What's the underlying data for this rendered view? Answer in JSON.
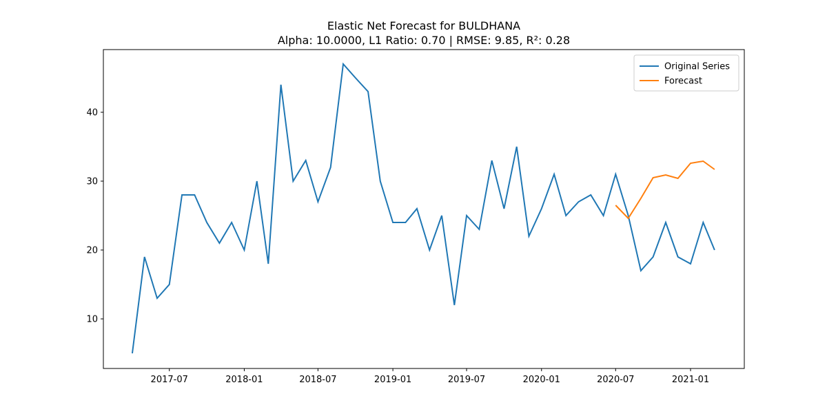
{
  "chart_data": {
    "type": "line",
    "title": "Elastic Net Forecast for BULDHANA",
    "subtitle": "Alpha: 10.0000, L1 Ratio: 0.70 | RMSE: 9.85, R²: 0.28",
    "series": [
      {
        "name": "Original Series",
        "color": "#1f77b4",
        "x": [
          "2017-04",
          "2017-05",
          "2017-06",
          "2017-07",
          "2017-08",
          "2017-09",
          "2017-10",
          "2017-11",
          "2017-12",
          "2018-01",
          "2018-02",
          "2018-03",
          "2018-04",
          "2018-05",
          "2018-06",
          "2018-07",
          "2018-08",
          "2018-09",
          "2018-10",
          "2018-11",
          "2018-12",
          "2019-01",
          "2019-02",
          "2019-03",
          "2019-04",
          "2019-05",
          "2019-06",
          "2019-07",
          "2019-08",
          "2019-09",
          "2019-10",
          "2019-11",
          "2019-12",
          "2020-01",
          "2020-02",
          "2020-03",
          "2020-04",
          "2020-05",
          "2020-06",
          "2020-07",
          "2020-08",
          "2020-09",
          "2020-10",
          "2020-11",
          "2020-12",
          "2021-01",
          "2021-02",
          "2021-03"
        ],
        "values": [
          5,
          19,
          13,
          15,
          28,
          28,
          24,
          21,
          24,
          20,
          30,
          18,
          44,
          30,
          33,
          27,
          32,
          47,
          45,
          43,
          30,
          24,
          24,
          26,
          20,
          25,
          12,
          25,
          23,
          33,
          26,
          35,
          22,
          26,
          31,
          25,
          27,
          28,
          25,
          31,
          25,
          17,
          19,
          24,
          19,
          18,
          24,
          20
        ]
      },
      {
        "name": "Forecast",
        "color": "#ff7f0e",
        "x": [
          "2020-07",
          "2020-08",
          "2020-09",
          "2020-10",
          "2020-11",
          "2020-12",
          "2021-01",
          "2021-02",
          "2021-03"
        ],
        "values": [
          26.5,
          24.6,
          27.5,
          30.5,
          30.9,
          30.4,
          32.6,
          32.9,
          31.7
        ]
      }
    ],
    "xlim": [
      "2017-01-20",
      "2021-05-13"
    ],
    "xticks": [
      "2017-07",
      "2018-01",
      "2018-07",
      "2019-01",
      "2019-07",
      "2020-01",
      "2020-07",
      "2021-01"
    ],
    "ylim": [
      2.8,
      49.1
    ],
    "yticks": [
      10,
      20,
      30,
      40
    ],
    "legend": "upper right"
  }
}
